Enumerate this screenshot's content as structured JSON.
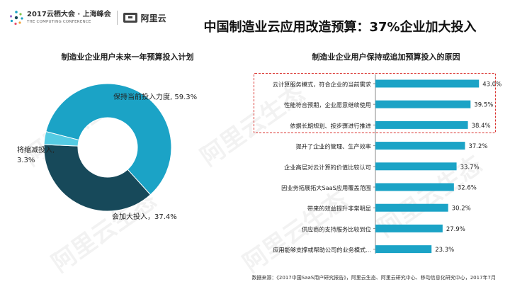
{
  "header": {
    "event_logo_line1": "2017云栖大会 · 上海峰会",
    "event_logo_line2": "THE COMPUTING CONFERENCE",
    "aliyun_logo": "阿里云",
    "title": "中国制造业云应用改造预算：37%企业加大投入"
  },
  "watermark": "阿里云生态",
  "footer": {
    "source": "数据来源：《2017中国SaaS用户研究报告》，阿里云生态、阿里云研究中心、移动信息化研究中心，2017年7月"
  },
  "colors": {
    "keep": "#1ba3c6",
    "increase": "#17495a",
    "decrease": "#55cbe3",
    "bar": "#1ba3c6",
    "highlight": "#d9302c"
  },
  "chart_data": [
    {
      "type": "pie",
      "title": "制造业企业用户未来一年预算投入计划",
      "slices": [
        {
          "label": "保持当前投入力度",
          "value": 59.3,
          "display": "保持当前投入力度, 59.3%"
        },
        {
          "label": "会加大投入",
          "value": 37.4,
          "display": "会加大投入，37.4%"
        },
        {
          "label": "将缩减投入",
          "value": 3.3,
          "display_line1": "将缩减投入,",
          "display_line2": "3.3%"
        }
      ]
    },
    {
      "type": "bar",
      "orientation": "horizontal",
      "title": "制造业企业用户保持或追加预算投入的原因",
      "categories": [
        "云计算服务模式，符合企业的当前需求",
        "性能符合预期，企业愿意继续使用",
        "依据长期规划、按步骤进行推进",
        "提升了企业的管理、生产效率",
        "企业高层对云计算的价值比较认可",
        "因业务拓展拓大SaaS应用覆盖范围",
        "带来的效益提升非常明显",
        "供应商的支持服务比较到位",
        "应用能够支撑或帮助公司的业务模式..."
      ],
      "values": [
        43.0,
        39.5,
        38.4,
        37.2,
        33.7,
        32.6,
        30.2,
        27.9,
        23.3
      ],
      "value_labels": [
        "43.0%",
        "39.5%",
        "38.4%",
        "37.2%",
        "33.7%",
        "32.6%",
        "30.2%",
        "27.9%",
        "23.3%"
      ],
      "xlim": [
        0,
        50
      ],
      "highlighted_top": 3
    }
  ]
}
